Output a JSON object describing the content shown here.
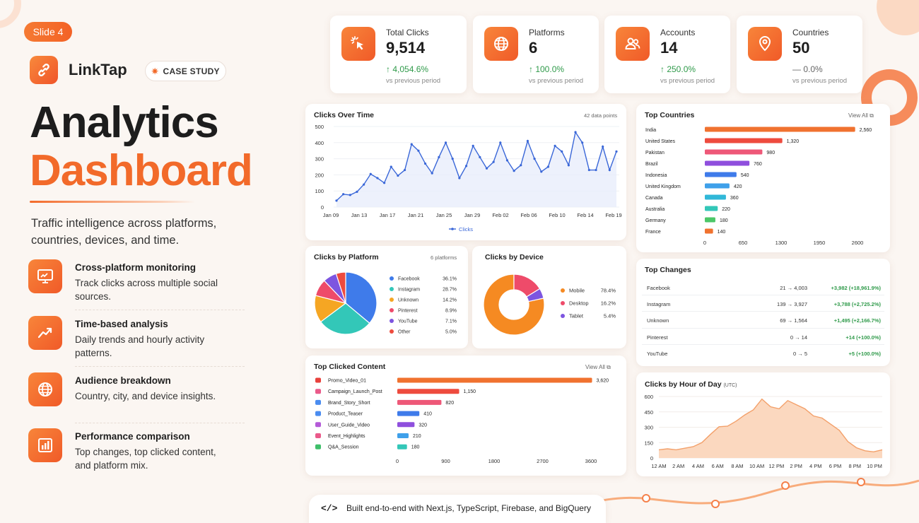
{
  "slide_label": "Slide 4",
  "brand": {
    "name": "LinkTap",
    "badge": "CASE STUDY"
  },
  "headline": {
    "line1": "Analytics",
    "line2": "Dashboard"
  },
  "tagline": "Traffic intelligence across platforms, countries, devices, and time.",
  "features": [
    {
      "title": "Cross-platform monitoring",
      "desc": "Track clicks across multiple social sources.",
      "icon": "monitor-icon"
    },
    {
      "title": "Time-based analysis",
      "desc": "Daily trends and hourly activity patterns.",
      "icon": "trend-up-icon"
    },
    {
      "title": "Audience breakdown",
      "desc": "Country, city, and device insights.",
      "icon": "globe-icon"
    },
    {
      "title": "Performance comparison",
      "desc": "Top changes, top clicked content, and platform mix.",
      "icon": "bar-chart-icon"
    }
  ],
  "kpis": [
    {
      "label": "Total Clicks",
      "value": "9,514",
      "change": "↑ 4,054.6%",
      "vs": "vs previous period",
      "icon": "cursor-click-icon"
    },
    {
      "label": "Platforms",
      "value": "6",
      "change": "↑ 100.0%",
      "vs": "vs previous period",
      "icon": "globe-icon"
    },
    {
      "label": "Accounts",
      "value": "14",
      "change": "↑ 250.0%",
      "vs": "vs previous period",
      "icon": "users-icon"
    },
    {
      "label": "Countries",
      "value": "50",
      "change": "— 0.0%",
      "vs": "vs previous period",
      "icon": "map-pin-icon"
    }
  ],
  "colors": {
    "accent": "#f26a2a",
    "positive": "#2f9a4a",
    "line": "#3a67d8"
  },
  "chart_data": [
    {
      "id": "clicks_over_time",
      "type": "area",
      "title": "Clicks Over Time",
      "meta": "42 data points",
      "x_ticks": [
        "Jan 09",
        "Jan 13",
        "Jan 17",
        "Jan 21",
        "Jan 25",
        "Jan 29",
        "Feb 02",
        "Feb 06",
        "Feb 10",
        "Feb 14",
        "Feb 19"
      ],
      "y_ticks": [
        "500",
        "400",
        "300",
        "200",
        "100",
        "0"
      ],
      "ylim": [
        0,
        500
      ],
      "series": [
        {
          "name": "Clicks",
          "values": [
            40,
            80,
            75,
            95,
            140,
            205,
            180,
            150,
            250,
            195,
            230,
            390,
            350,
            270,
            210,
            310,
            400,
            300,
            180,
            255,
            380,
            310,
            240,
            280,
            400,
            290,
            225,
            260,
            410,
            300,
            220,
            250,
            380,
            345,
            260,
            465,
            400,
            230,
            230,
            375,
            230,
            345
          ]
        }
      ],
      "legend": "bottom"
    },
    {
      "id": "top_countries",
      "type": "bar",
      "title": "Top Countries",
      "action": "View All",
      "categories": [
        "India",
        "United States",
        "Pakistan",
        "Brazil",
        "Indonesia",
        "United Kingdom",
        "Canada",
        "Australia",
        "Germany",
        "France"
      ],
      "values": [
        2560,
        1320,
        980,
        760,
        540,
        420,
        360,
        220,
        180,
        140
      ],
      "value_labels": [
        "2,560",
        "1,320",
        "980",
        "760",
        "540",
        "420",
        "360",
        "220",
        "180",
        "140"
      ],
      "colors": [
        "#f0722f",
        "#ee4b3e",
        "#ee5878",
        "#8f4fdd",
        "#3f7bea",
        "#3fa0ea",
        "#31b8d8",
        "#33c7b8",
        "#4cc768",
        "#f0722f"
      ],
      "x_ticks": [
        "0",
        "650",
        "1300",
        "1950",
        "2600"
      ],
      "xlim": [
        0,
        2600
      ]
    },
    {
      "id": "clicks_by_platform",
      "type": "pie",
      "title": "Clicks by Platform",
      "meta": "6 platforms",
      "labels": [
        "Facebook",
        "Instagram",
        "Unknown",
        "Pinterest",
        "YouTube",
        "Other"
      ],
      "values": [
        36.1,
        28.7,
        14.2,
        8.9,
        7.1,
        5.0
      ],
      "value_labels": [
        "36.1%",
        "28.7%",
        "14.2%",
        "8.9%",
        "7.1%",
        "5.0%"
      ],
      "colors": [
        "#3f7bea",
        "#33c7b8",
        "#f5a623",
        "#ee4b6a",
        "#7d55e0",
        "#ee4b3e"
      ]
    },
    {
      "id": "clicks_by_device",
      "type": "pie",
      "title": "Clicks by Device",
      "labels": [
        "Mobile",
        "Desktop",
        "Tablet"
      ],
      "values": [
        78.4,
        16.2,
        5.4
      ],
      "value_labels": [
        "78.4%",
        "16.2%",
        "5.4%"
      ],
      "colors": [
        "#f58a22",
        "#ee4b6a",
        "#7d55e0"
      ]
    },
    {
      "id": "top_clicked_content",
      "type": "bar",
      "title": "Top Clicked Content",
      "action": "View All",
      "categories": [
        "Promo_Video_01",
        "Campaign_Launch_Post",
        "Brand_Story_Short",
        "Product_Teaser",
        "User_Guide_Video",
        "Event_Highlights",
        "Q&A_Session"
      ],
      "values": [
        3620,
        1150,
        820,
        410,
        320,
        210,
        180
      ],
      "value_labels": [
        "3,620",
        "1,150",
        "820",
        "410",
        "320",
        "210",
        "180"
      ],
      "colors": [
        "#f0722f",
        "#ee4b3e",
        "#ee5878",
        "#3f7bea",
        "#8f4fdd",
        "#3fa0ea",
        "#33c7b8"
      ],
      "icon_colors": [
        "#e8413c",
        "#ea5a8a",
        "#4a8cf0",
        "#4a8cf0",
        "#b45ad8",
        "#ea5a8a",
        "#3fbf6a"
      ],
      "x_ticks": [
        "0",
        "900",
        "1800",
        "2700",
        "3600"
      ],
      "xlim": [
        0,
        3600
      ]
    },
    {
      "id": "top_changes",
      "type": "table",
      "title": "Top Changes",
      "rows": [
        {
          "platform": "Facebook",
          "range": "21 → 4,003",
          "delta": "+3,982 (+18,961.9%)"
        },
        {
          "platform": "Instagram",
          "range": "139 → 3,927",
          "delta": "+3,788 (+2,725.2%)"
        },
        {
          "platform": "Unknown",
          "range": "69 → 1,564",
          "delta": "+1,495 (+2,166.7%)"
        },
        {
          "platform": "Pinterest",
          "range": "0 → 14",
          "delta": "+14 (+100.0%)"
        },
        {
          "platform": "YouTube",
          "range": "0 → 5",
          "delta": "+5 (+100.0%)"
        }
      ]
    },
    {
      "id": "clicks_by_hour",
      "type": "area",
      "title": "Clicks by Hour of Day",
      "subtitle": "(UTC)",
      "x_ticks": [
        "12 AM",
        "2 AM",
        "4 AM",
        "6 AM",
        "8 AM",
        "10 AM",
        "12 PM",
        "2 PM",
        "4 PM",
        "6 PM",
        "8 PM",
        "10 PM"
      ],
      "y_ticks": [
        "600",
        "450",
        "300",
        "150",
        "0"
      ],
      "ylim": [
        0,
        600
      ],
      "series": [
        {
          "values": [
            80,
            90,
            80,
            95,
            110,
            150,
            230,
            305,
            310,
            360,
            420,
            470,
            575,
            500,
            480,
            560,
            520,
            480,
            410,
            390,
            330,
            270,
            160,
            100,
            70,
            60,
            80
          ]
        }
      ]
    }
  ],
  "footer": {
    "code_glyph": "</>",
    "text": "Built end-to-end with Next.js, TypeScript, Firebase, and BigQuery"
  }
}
